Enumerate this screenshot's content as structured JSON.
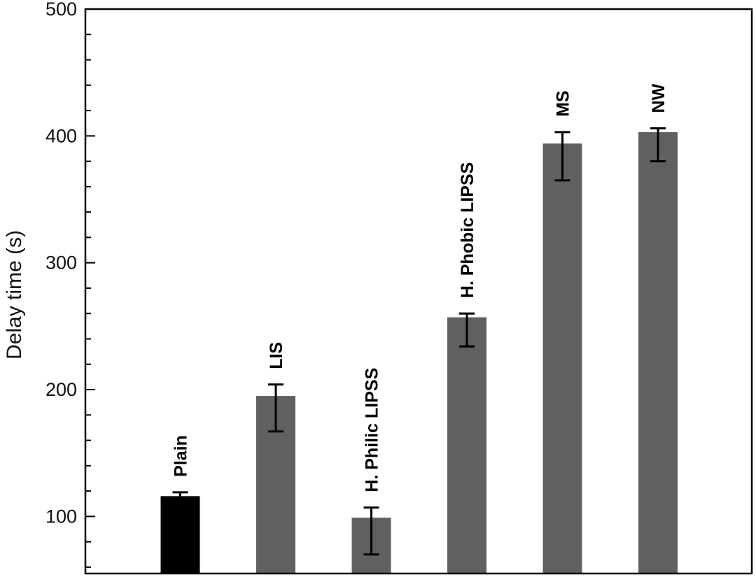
{
  "chart_data": {
    "type": "bar",
    "ylabel": "Delay time (s)",
    "xlabel": "",
    "ylim": [
      55,
      500
    ],
    "yticks": [
      100,
      200,
      300,
      400,
      500
    ],
    "ytick_labels": [
      "100",
      "200",
      "300",
      "400",
      "500"
    ],
    "minor_ticks": true,
    "grid": false,
    "categories": [
      "Plain",
      "LIS",
      "H. Philic LIPSS",
      "H. Phobic LIPSS",
      "MS",
      "NW"
    ],
    "values": [
      116,
      195,
      99,
      257,
      394,
      403
    ],
    "error_low": [
      113,
      167,
      70,
      234,
      365,
      380
    ],
    "error_high": [
      119,
      204,
      107,
      260,
      403,
      406
    ],
    "bar_colors": [
      "#000000",
      "#606060",
      "#606060",
      "#606060",
      "#606060",
      "#606060"
    ]
  }
}
